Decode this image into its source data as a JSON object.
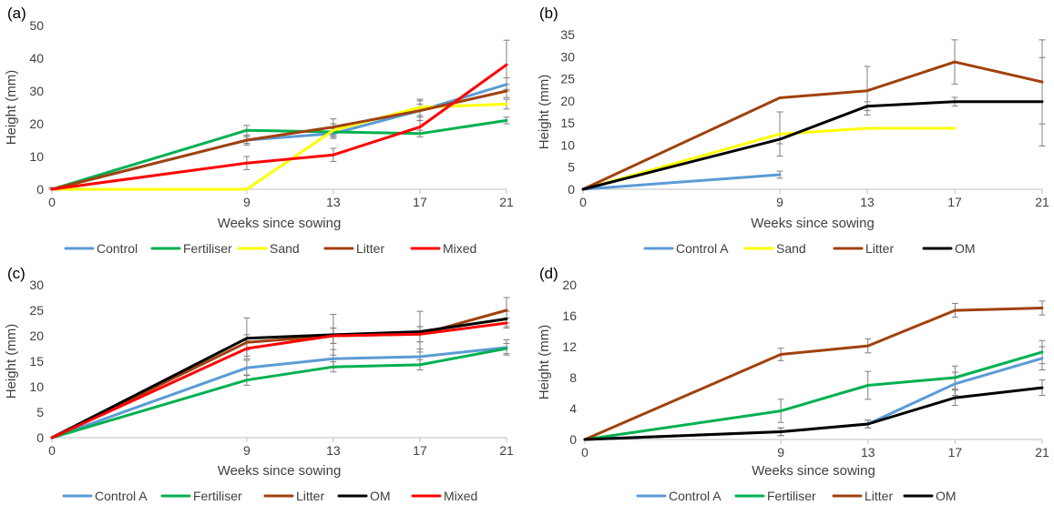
{
  "panel_labels": [
    "(a)",
    "(b)",
    "(c)",
    "(d)"
  ],
  "chart_data": [
    {
      "type": "line",
      "panel": "(a)",
      "xlabel": "Weeks since sowing",
      "ylabel": "Height (mm)",
      "x": [
        0,
        9,
        13,
        17,
        21
      ],
      "x_ticks": [
        0,
        9,
        13,
        17,
        21
      ],
      "ylim": [
        0,
        50
      ],
      "y_ticks": [
        0,
        10,
        20,
        30,
        40,
        50
      ],
      "legend_position": "bottom",
      "series": [
        {
          "name": "Control",
          "color": "#5B9BD5",
          "x": [
            0,
            9,
            13,
            17,
            21
          ],
          "values": [
            0,
            15,
            17,
            24,
            32
          ],
          "error": [
            0.5,
            1.5,
            1.5,
            2,
            2
          ]
        },
        {
          "name": "Fertiliser",
          "color": "#00B050",
          "x": [
            0,
            9,
            13,
            17,
            21
          ],
          "values": [
            0,
            18,
            17.5,
            17,
            21
          ],
          "error": [
            0.5,
            1.5,
            1.5,
            1,
            1
          ]
        },
        {
          "name": "Sand",
          "color": "#FFFF00",
          "x": [
            0,
            9,
            13,
            17,
            21
          ],
          "values": [
            0,
            0,
            18,
            25,
            26
          ],
          "error": [
            0,
            0,
            2,
            2.5,
            1.5
          ]
        },
        {
          "name": "Litter",
          "color": "#A0410D",
          "x": [
            0,
            9,
            13,
            17,
            21
          ],
          "values": [
            0,
            15,
            19,
            24,
            30
          ],
          "error": [
            0.5,
            1,
            2.5,
            3,
            2
          ]
        },
        {
          "name": "Mixed",
          "color": "#FF0000",
          "x": [
            0,
            9,
            13,
            17,
            21
          ],
          "values": [
            0,
            8,
            10.5,
            19,
            38
          ],
          "error": [
            0.5,
            2,
            2,
            2,
            7.5
          ]
        }
      ]
    },
    {
      "type": "line",
      "panel": "(b)",
      "xlabel": "Weeks since sowing",
      "ylabel": "Height (mm)",
      "x": [
        0,
        9,
        13,
        17,
        21
      ],
      "x_ticks": [
        0,
        9,
        13,
        17,
        21
      ],
      "ylim": [
        0,
        35
      ],
      "y_ticks": [
        0,
        5,
        10,
        15,
        20,
        25,
        30,
        35
      ],
      "legend_position": "bottom",
      "series": [
        {
          "name": "Control A",
          "color": "#5B9BD5",
          "x": [
            0,
            9
          ],
          "values": [
            0,
            3.3
          ],
          "error": [
            0,
            0.8
          ]
        },
        {
          "name": "Sand",
          "color": "#FFFF00",
          "x": [
            0,
            9,
            13,
            17
          ],
          "values": [
            0,
            12.5,
            13.8,
            13.8
          ],
          "error": [
            0,
            5,
            0,
            0
          ]
        },
        {
          "name": "Litter",
          "color": "#A0410D",
          "x": [
            0,
            9,
            13,
            17,
            21
          ],
          "values": [
            0,
            20.7,
            22.3,
            28.8,
            24.3
          ],
          "error": [
            0,
            0,
            5.5,
            5,
            9.5
          ]
        },
        {
          "name": "OM",
          "color": "#000000",
          "x": [
            0,
            9,
            13,
            17,
            21
          ],
          "values": [
            0,
            11.3,
            18.8,
            19.8,
            19.8
          ],
          "error": [
            0,
            1,
            1,
            1,
            10
          ]
        }
      ]
    },
    {
      "type": "line",
      "panel": "(c)",
      "xlabel": "Weeks since sowing",
      "ylabel": "Height (mm)",
      "x": [
        0,
        9,
        13,
        17,
        21
      ],
      "x_ticks": [
        0,
        9,
        13,
        17,
        21
      ],
      "ylim": [
        0,
        30
      ],
      "y_ticks": [
        0,
        5,
        10,
        15,
        20,
        25,
        30
      ],
      "legend_position": "bottom",
      "series": [
        {
          "name": "Control A",
          "color": "#5B9BD5",
          "x": [
            0,
            9,
            13,
            17,
            21
          ],
          "values": [
            0,
            13.7,
            15.5,
            15.9,
            17.7
          ],
          "error": [
            0,
            1.5,
            1.8,
            1.5,
            1.5
          ]
        },
        {
          "name": "Fertiliser",
          "color": "#00B050",
          "x": [
            0,
            9,
            13,
            17,
            21
          ],
          "values": [
            0,
            11.3,
            13.9,
            14.3,
            17.5
          ],
          "error": [
            0,
            1,
            1,
            1,
            1
          ]
        },
        {
          "name": "Litter",
          "color": "#A0410D",
          "x": [
            0,
            9,
            13,
            17,
            21
          ],
          "values": [
            0,
            18.7,
            20,
            20.3,
            25
          ],
          "error": [
            0,
            1.5,
            1.5,
            1.5,
            2.5
          ]
        },
        {
          "name": "OM",
          "color": "#000000",
          "x": [
            0,
            9,
            13,
            17,
            21
          ],
          "values": [
            0,
            19.5,
            20.2,
            20.8,
            23.3
          ],
          "error": [
            0,
            4,
            4,
            4,
            1.5
          ]
        },
        {
          "name": "Mixed",
          "color": "#FF0000",
          "x": [
            0,
            9,
            13,
            17,
            21
          ],
          "values": [
            0,
            17.5,
            20,
            20.3,
            22.5
          ],
          "error": [
            0,
            1.5,
            1.5,
            1.5,
            1
          ]
        }
      ]
    },
    {
      "type": "line",
      "panel": "(d)",
      "xlabel": "Weeks since sowing",
      "ylabel": "Height (mm)",
      "x": [
        0,
        9,
        13,
        17,
        21
      ],
      "x_ticks": [
        0,
        9,
        13,
        17,
        21
      ],
      "ylim": [
        0,
        20
      ],
      "y_ticks": [
        0,
        4,
        8,
        12,
        16,
        20
      ],
      "legend_position": "bottom",
      "series": [
        {
          "name": "Control A",
          "color": "#5B9BD5",
          "x": [
            0,
            9,
            13,
            17,
            21
          ],
          "values": [
            0,
            1,
            2,
            7.2,
            10.5
          ],
          "error": [
            0,
            0.5,
            0.5,
            1.5,
            1.5
          ]
        },
        {
          "name": "Fertiliser",
          "color": "#00B050",
          "x": [
            0,
            9,
            13,
            17,
            21
          ],
          "values": [
            0,
            3.7,
            7,
            8,
            11.3
          ],
          "error": [
            0,
            1.5,
            1.8,
            1.5,
            1.5
          ]
        },
        {
          "name": "Litter",
          "color": "#A0410D",
          "x": [
            0,
            9,
            13,
            17,
            21
          ],
          "values": [
            0,
            11,
            12.1,
            16.7,
            17
          ],
          "error": [
            0,
            0.8,
            0.9,
            0.9,
            0.9
          ]
        },
        {
          "name": "OM",
          "color": "#000000",
          "x": [
            0,
            9,
            13,
            17,
            21
          ],
          "values": [
            0,
            1,
            2,
            5.4,
            6.7
          ],
          "error": [
            0,
            0.5,
            0.5,
            1,
            1
          ]
        }
      ]
    }
  ]
}
